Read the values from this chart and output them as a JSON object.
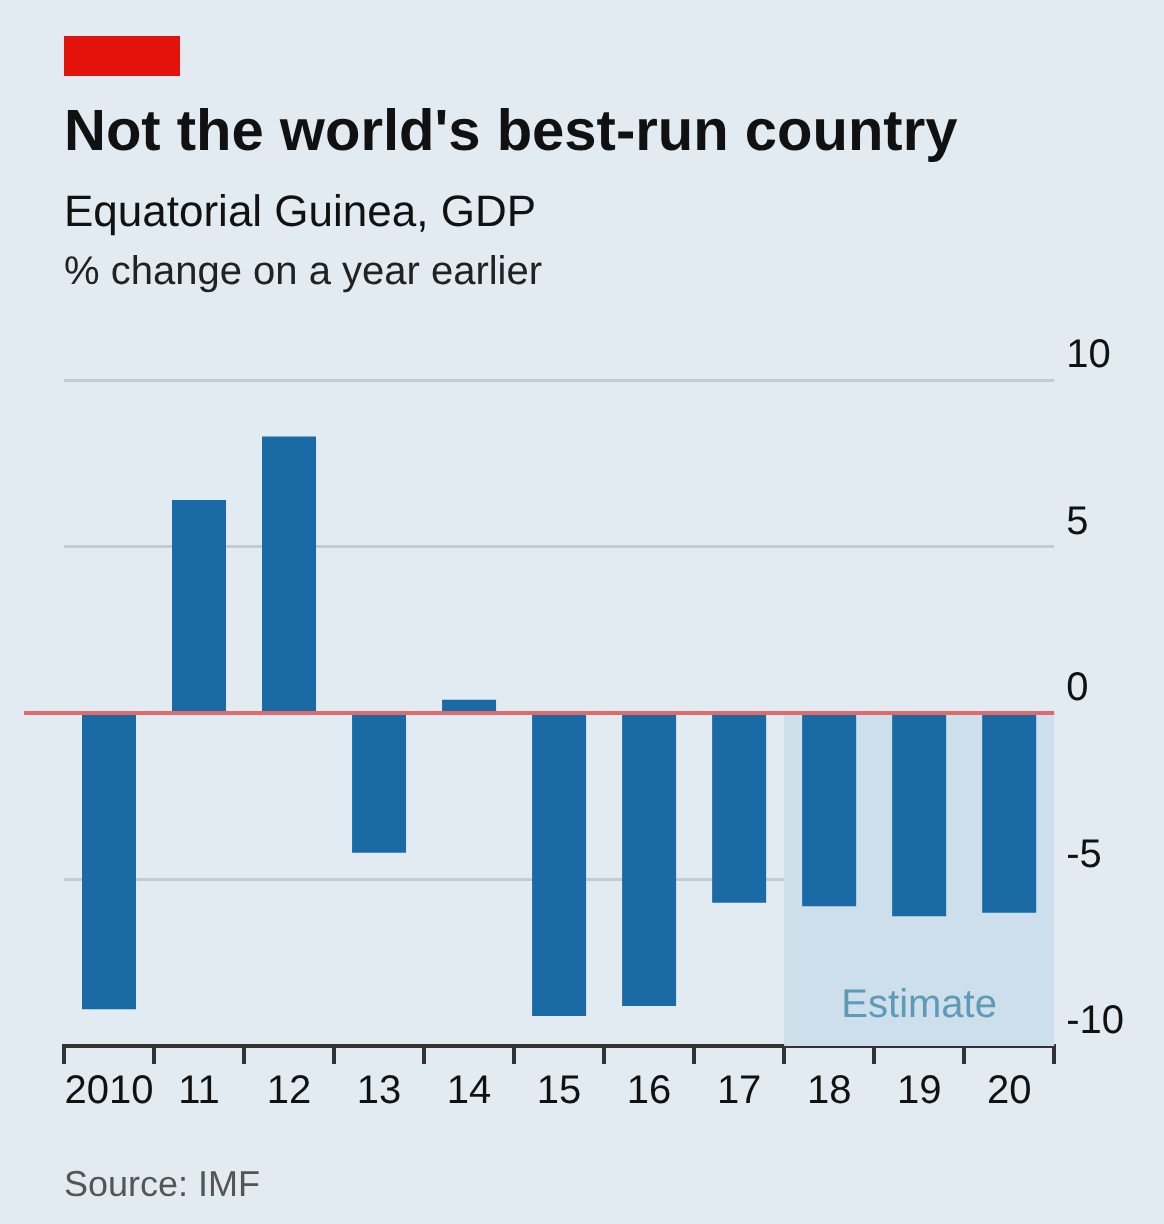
{
  "chart_data": {
    "type": "bar",
    "title": "Not the world's best-run country",
    "subtitle": "Equatorial Guinea, GDP",
    "ylabel": "% change on a year earlier",
    "categories": [
      "2010",
      "11",
      "12",
      "13",
      "14",
      "15",
      "16",
      "17",
      "18",
      "19",
      "20"
    ],
    "values": [
      -8.9,
      6.4,
      8.3,
      -4.2,
      0.4,
      -9.1,
      -8.8,
      -5.7,
      -5.8,
      -6.1,
      -6.0
    ],
    "color": "#1a6aa6",
    "ylim": [
      -10,
      10
    ],
    "yticks": [
      -10,
      -5,
      0,
      5,
      10
    ],
    "grid": "y",
    "ref_lines": [
      {
        "axis": "y",
        "value": 0,
        "color": "#e06a6a"
      }
    ],
    "bands": [
      {
        "axis": "x",
        "from": "18",
        "to": "20",
        "label": "Estimate",
        "color": "#cddfea"
      }
    ],
    "annotations": [
      "Source: IMF"
    ]
  }
}
